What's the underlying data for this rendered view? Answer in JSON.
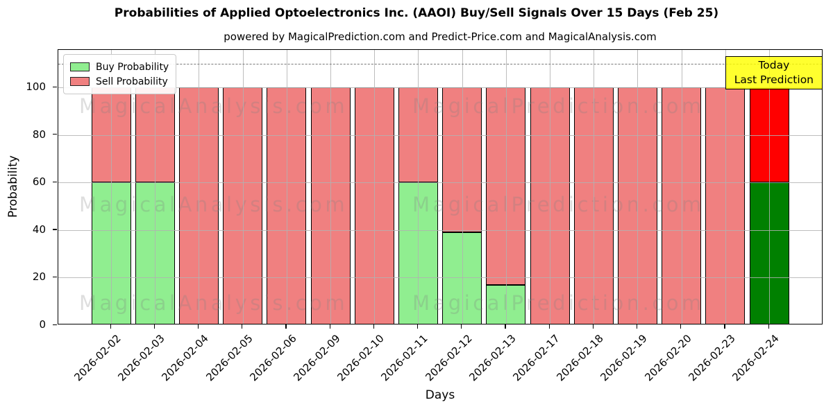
{
  "title": "Probabilities of Applied Optoelectronics Inc. (AAOI) Buy/Sell Signals Over 15 Days (Feb 25)",
  "subtitle": "powered by MagicalPrediction.com and Predict-Price.com and MagicalAnalysis.com",
  "axes": {
    "xlabel": "Days",
    "ylabel": "Probability",
    "yticks": [
      0,
      20,
      40,
      60,
      80,
      100
    ],
    "ylim": [
      0,
      116
    ],
    "grid": true,
    "dashed_line_y": 110
  },
  "legend": {
    "position": "upper-left",
    "items": [
      {
        "label": "Buy Probability",
        "color": "#90EE90"
      },
      {
        "label": "Sell Probability",
        "color": "#F08080"
      }
    ]
  },
  "annotation": {
    "line1": "Today",
    "line2": "Last Prediction",
    "bg_color": "#FFFF00"
  },
  "watermarks": {
    "left_text": "MagicalAnalysis.com",
    "right_text": "MagicalPrediction.com",
    "row_count": 3
  },
  "chart_data": {
    "type": "bar",
    "stacked": true,
    "title": "Probabilities of Applied Optoelectronics Inc. (AAOI) Buy/Sell Signals Over 15 Days (Feb 25)",
    "xlabel": "Days",
    "ylabel": "Probability",
    "ylim": [
      0,
      116
    ],
    "legend_position": "upper-left",
    "grid": true,
    "categories": [
      "2026-02-02",
      "2026-02-03",
      "2026-02-04",
      "2026-02-05",
      "2026-02-06",
      "2026-02-09",
      "2026-02-10",
      "2026-02-11",
      "2026-02-12",
      "2026-02-13",
      "2026-02-17",
      "2026-02-18",
      "2026-02-19",
      "2026-02-20",
      "2026-02-23",
      "2026-02-24"
    ],
    "series": [
      {
        "name": "Buy Probability",
        "color": "#90EE90",
        "values": [
          60,
          60,
          0,
          0,
          0,
          0,
          0,
          60,
          39,
          17,
          0,
          0,
          0,
          0,
          0,
          60
        ]
      },
      {
        "name": "Sell Probability",
        "color": "#F08080",
        "values": [
          40,
          40,
          100,
          100,
          100,
          100,
          100,
          40,
          61,
          83,
          100,
          100,
          100,
          100,
          100,
          40
        ]
      }
    ],
    "today_index": 15,
    "today_colors": {
      "buy": "#008000",
      "sell": "#FF0000"
    }
  }
}
